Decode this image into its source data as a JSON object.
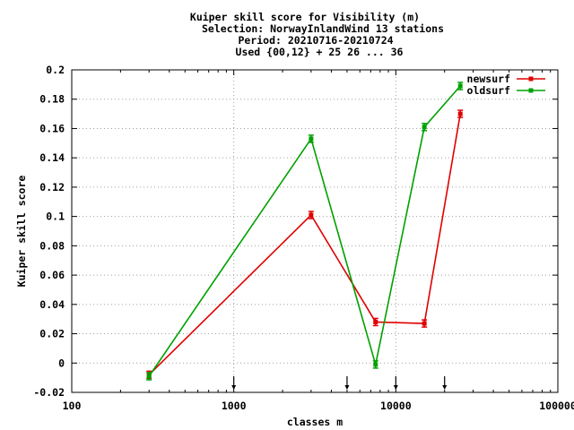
{
  "chart_data": {
    "type": "line",
    "title_lines": [
      "Kuiper skill score  for Visibility (m)",
      "Selection: NorwayInlandWind     13 stations",
      "Period: 20210716-20210724",
      "Used {00,12} + 25 26 ... 36"
    ],
    "xlabel": "classes m",
    "ylabel": "Kuiper skill score",
    "x_scale": "log",
    "xlim": [
      100,
      100000
    ],
    "ylim": [
      -0.02,
      0.2
    ],
    "x_ticks": [
      100,
      1000,
      10000,
      100000
    ],
    "x_tick_labels": [
      "100",
      "1000",
      "10000",
      "100000"
    ],
    "y_ticks": [
      -0.02,
      0,
      0.02,
      0.04,
      0.06,
      0.08,
      0.1,
      0.12,
      0.14,
      0.16,
      0.18,
      0.2
    ],
    "y_tick_labels": [
      "-0.02",
      "0",
      "0.02",
      "0.04",
      "0.06",
      "0.08",
      "0.1",
      "0.12",
      "0.14",
      "0.16",
      "0.18",
      "0.2"
    ],
    "grid": true,
    "legend_position": "top-right",
    "class_markers_x": [
      1000,
      5000,
      10000,
      20000
    ],
    "series": [
      {
        "name": "newsurf",
        "color": "#e00000",
        "x": [
          300,
          3000,
          7500,
          15000,
          25000
        ],
        "y": [
          -0.008,
          0.101,
          0.028,
          0.027,
          0.17
        ]
      },
      {
        "name": "oldsurf",
        "color": "#00a000",
        "x": [
          300,
          3000,
          7500,
          15000,
          25000
        ],
        "y": [
          -0.009,
          0.153,
          -0.001,
          0.161,
          0.189
        ]
      }
    ]
  }
}
